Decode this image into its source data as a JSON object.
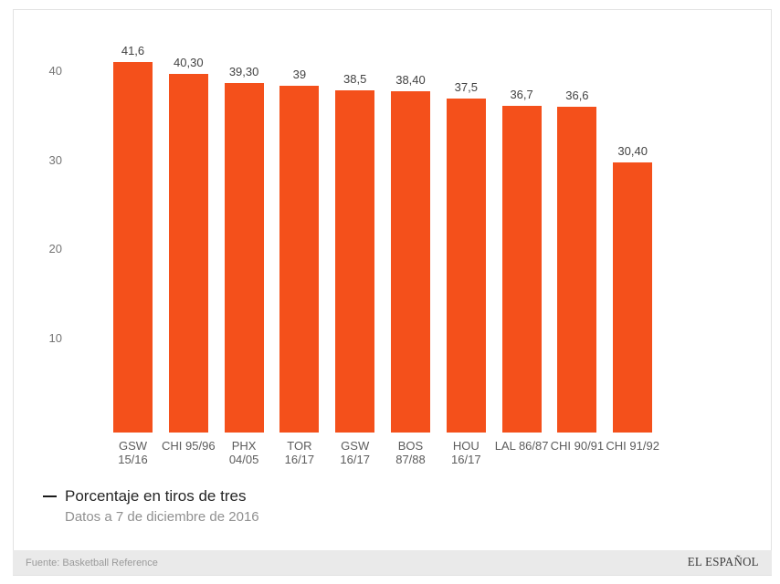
{
  "chart_data": {
    "type": "bar",
    "title": "",
    "categories": [
      [
        "GSW",
        "15/16"
      ],
      [
        "CHI 95/96"
      ],
      [
        "PHX",
        "04/05"
      ],
      [
        "TOR",
        "16/17"
      ],
      [
        "GSW",
        "16/17"
      ],
      [
        "BOS",
        "87/88"
      ],
      [
        "HOU",
        "16/17"
      ],
      [
        "LAL 86/87"
      ],
      [
        "CHI 90/91"
      ],
      [
        "CHI 91/92"
      ]
    ],
    "values": [
      41.6,
      40.3,
      39.3,
      39,
      38.5,
      38.4,
      37.5,
      36.7,
      36.6,
      30.4
    ],
    "value_labels": [
      "41,6",
      "40,30",
      "39,30",
      "39",
      "38,5",
      "38,40",
      "37,5",
      "36,7",
      "36,6",
      "30,40"
    ],
    "yticks": [
      10,
      20,
      30,
      40
    ],
    "ytick_labels": [
      "10",
      "20",
      "30",
      "40"
    ],
    "ylim": [
      0,
      43
    ],
    "grid": false,
    "xlabel": "",
    "ylabel": "",
    "bar_color": "#f4501b",
    "legend_position": "bottom-left",
    "series_name": "Porcentaje en tiros de tres"
  },
  "legend": {
    "label": "Porcentaje en tiros de tres"
  },
  "subtitle": "Datos a 7 de diciembre de 2016",
  "footer": {
    "source": "Fuente: Basketball Reference",
    "brand": "EL ESPAÑOL"
  },
  "colors": {
    "accent": "#f4501b",
    "footer_background": "#eaeaea",
    "axis_text": "#757575",
    "value_text": "#424242"
  }
}
